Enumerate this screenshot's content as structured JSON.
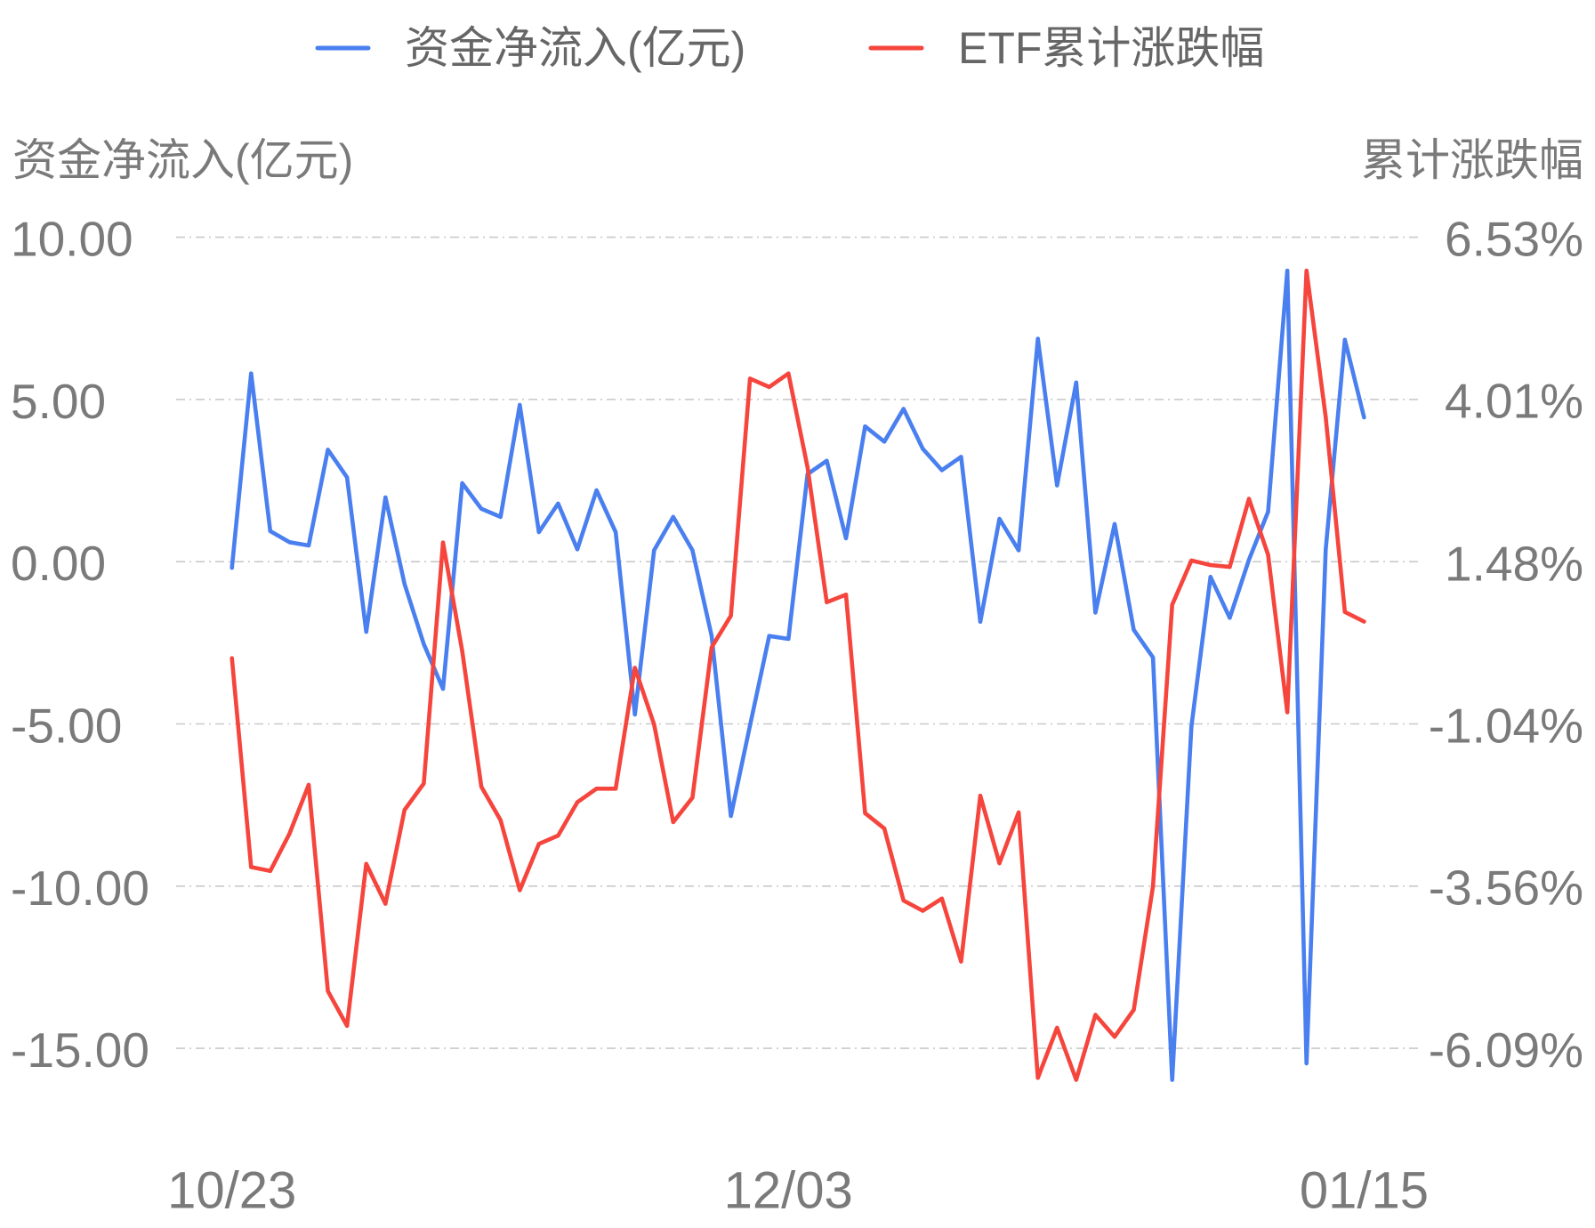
{
  "chart_data": {
    "type": "line",
    "title": "",
    "legend_position": "top",
    "grid": true,
    "y_left": {
      "label": "资金净流入(亿元)",
      "ylim": [
        -15,
        10
      ],
      "ticks": [
        "10.00",
        "5.00",
        "0.00",
        "-5.00",
        "-10.00",
        "-15.00"
      ]
    },
    "y_right": {
      "label": "累计涨跌幅",
      "ylim": [
        -6.09,
        6.53
      ],
      "ticks": [
        "6.53%",
        "4.01%",
        "1.48%",
        "-1.04%",
        "-3.56%",
        "-6.09%"
      ]
    },
    "x_ticks": [
      {
        "index": 0,
        "label": "10/23"
      },
      {
        "index": 29,
        "label": "12/03"
      },
      {
        "index": 59,
        "label": "01/15"
      }
    ],
    "series": [
      {
        "name": "资金净流入(亿元)",
        "axis": "left",
        "color": "#4a7ff0",
        "values": [
          -0.19,
          5.8,
          0.94,
          0.6,
          0.5,
          3.45,
          2.6,
          -2.16,
          1.98,
          -0.69,
          -2.54,
          -3.92,
          2.42,
          1.63,
          1.38,
          4.83,
          0.91,
          1.79,
          0.38,
          2.2,
          0.91,
          -4.71,
          0.35,
          1.38,
          0.35,
          -2.29,
          -7.84,
          -5.05,
          -2.29,
          -2.38,
          2.7,
          3.11,
          0.72,
          4.17,
          3.7,
          4.71,
          3.48,
          2.82,
          3.23,
          -1.85,
          1.32,
          0.35,
          6.87,
          2.35,
          5.52,
          -1.57,
          1.16,
          -2.1,
          -2.95,
          -15.97,
          -5.08,
          -0.47,
          -1.73,
          0.06,
          1.54,
          8.97,
          -15.46,
          0.38,
          6.84,
          4.45
        ]
      },
      {
        "name": "ETF累计涨跌幅",
        "axis": "right",
        "color": "#f5453d",
        "values": [
          -0.02,
          -3.27,
          -3.33,
          -2.75,
          -1.99,
          -5.2,
          -5.74,
          -3.22,
          -3.84,
          -2.38,
          -1.97,
          1.78,
          0.09,
          -2.02,
          -2.54,
          -3.63,
          -2.91,
          -2.78,
          -2.26,
          -2.05,
          -2.05,
          -0.17,
          -1.05,
          -2.57,
          -2.19,
          0.15,
          0.64,
          4.33,
          4.2,
          4.41,
          2.95,
          0.85,
          0.97,
          -2.43,
          -2.67,
          -3.79,
          -3.95,
          -3.76,
          -4.74,
          -2.16,
          -3.21,
          -2.42,
          -6.55,
          -5.77,
          -6.58,
          -5.57,
          -5.91,
          -5.49,
          -3.57,
          0.81,
          1.5,
          1.43,
          1.4,
          2.46,
          1.59,
          -0.86,
          6.01,
          3.73,
          0.7,
          0.55
        ]
      }
    ]
  }
}
